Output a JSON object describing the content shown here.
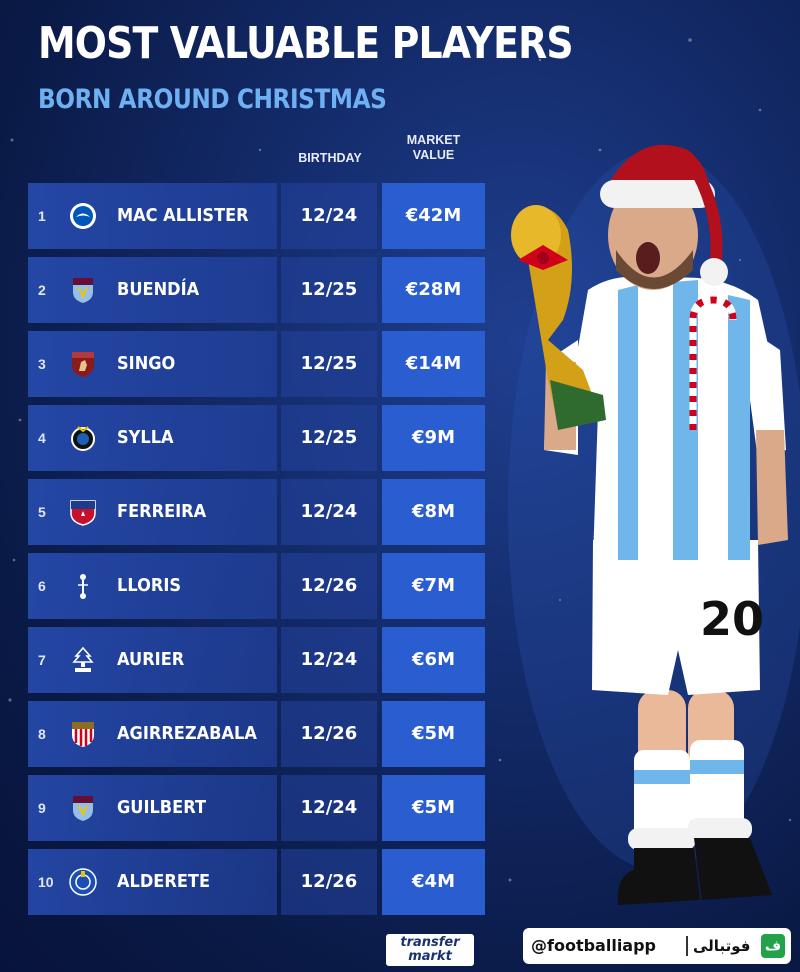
{
  "header": {
    "title": "MOST VALUABLE PLAYERS",
    "subtitle": "BORN AROUND CHRISTMAS"
  },
  "columns": {
    "birthday": "BIRTHDAY",
    "market_value_line1": "MARKET",
    "market_value_line2": "VALUE"
  },
  "rows": [
    {
      "rank": "1",
      "name": "MAC ALLISTER",
      "birthday": "12/24",
      "value": "€42M",
      "club_icon": "brighton-crest-icon"
    },
    {
      "rank": "2",
      "name": "BUENDÍA",
      "birthday": "12/25",
      "value": "€28M",
      "club_icon": "aston-villa-crest-icon"
    },
    {
      "rank": "3",
      "name": "SINGO",
      "birthday": "12/25",
      "value": "€14M",
      "club_icon": "torino-crest-icon"
    },
    {
      "rank": "4",
      "name": "SYLLA",
      "birthday": "12/25",
      "value": "€9M",
      "club_icon": "club-brugge-crest-icon"
    },
    {
      "rank": "5",
      "name": "FERREIRA",
      "birthday": "12/24",
      "value": "€8M",
      "club_icon": "fc-dallas-crest-icon"
    },
    {
      "rank": "6",
      "name": "LLORIS",
      "birthday": "12/26",
      "value": "€7M",
      "club_icon": "tottenham-crest-icon"
    },
    {
      "rank": "7",
      "name": "AURIER",
      "birthday": "12/24",
      "value": "€6M",
      "club_icon": "nottingham-forest-crest-icon"
    },
    {
      "rank": "8",
      "name": "AGIRREZABALA",
      "birthday": "12/26",
      "value": "€5M",
      "club_icon": "athletic-bilbao-crest-icon"
    },
    {
      "rank": "9",
      "name": "GUILBERT",
      "birthday": "12/24",
      "value": "€5M",
      "club_icon": "aston-villa-crest-icon"
    },
    {
      "rank": "10",
      "name": "ALDERETE",
      "birthday": "12/26",
      "value": "€4M",
      "club_icon": "getafe-crest-icon"
    }
  ],
  "footer": {
    "logo_line1": "transfer",
    "logo_line2": "markt",
    "handle": "@footballiapp",
    "handle_arabic": "فوتبالی",
    "app_logo_glyph": "ف"
  },
  "colors": {
    "background": "#132a68",
    "accent_blue": "#6fb0f2",
    "value_cell": "#2a5dd0"
  }
}
